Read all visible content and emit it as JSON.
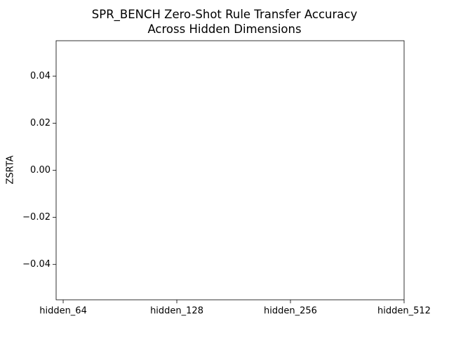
{
  "chart_data": {
    "type": "bar",
    "title": "SPR_BENCH Zero-Shot Rule Transfer Accuracy\nAcross Hidden Dimensions",
    "ylabel": "ZSRTA",
    "categories": [
      "hidden_64",
      "hidden_128",
      "hidden_256",
      "hidden_512"
    ],
    "values": [
      0,
      0,
      0,
      0
    ],
    "color": "#1f77b4",
    "ylim": [
      -0.055,
      0.055
    ],
    "yticks": [
      {
        "value": -0.04,
        "label": "−0.04"
      },
      {
        "value": -0.02,
        "label": "−0.02"
      },
      {
        "value": 0,
        "label": "0.00"
      },
      0.02,
      0.04
    ],
    "grid": false
  }
}
